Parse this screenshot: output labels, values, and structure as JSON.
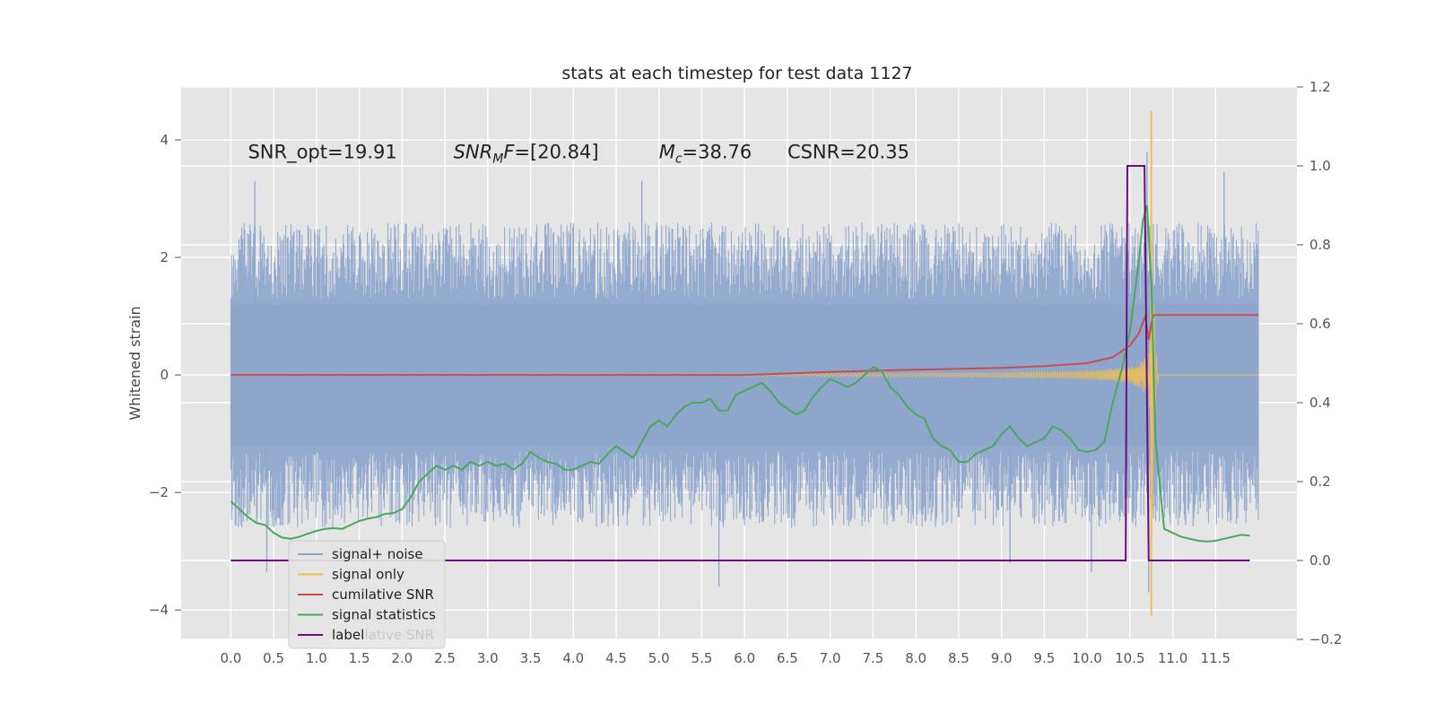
{
  "chart_data": {
    "type": "line",
    "title": "stats at each timestep for test data 1127",
    "xlabel": "",
    "ylabel": "Whitened strain",
    "xlim": [
      -0.58,
      12.45
    ],
    "ylim": [
      -4.5,
      4.9
    ],
    "y2lim": [
      -0.2,
      1.2
    ],
    "grid": true,
    "x_ticks": [
      "0.0",
      "0.5",
      "1.0",
      "1.5",
      "2.0",
      "2.5",
      "3.0",
      "3.5",
      "4.0",
      "4.5",
      "5.0",
      "5.5",
      "6.0",
      "6.5",
      "7.0",
      "7.5",
      "8.0",
      "8.5",
      "9.0",
      "9.5",
      "10.0",
      "10.5",
      "11.0",
      "11.5"
    ],
    "y_ticks": [
      "4",
      "2",
      "0",
      "−2",
      "−4"
    ],
    "y2_ticks": [
      "1.2",
      "1.0",
      "0.8",
      "0.6",
      "0.4",
      "0.2",
      "0.0",
      "−0.2"
    ],
    "annotations": [
      {
        "text": "SNR_opt=19.91",
        "x": 0.2,
        "y": 3.75
      },
      {
        "text": "SNR_MF=[20.84]",
        "x": 2.6,
        "y": 3.75,
        "math": "SNR",
        "sub": "M",
        "rest": "F=[20.84]"
      },
      {
        "text": "M_c=38.76",
        "x": 5.0,
        "y": 3.75,
        "math": "M",
        "sub": "c",
        "rest": "=38.76"
      },
      {
        "text": "CSNR=20.35",
        "x": 6.5,
        "y": 3.75
      }
    ],
    "legend": {
      "placement": "lower-left",
      "entries": [
        {
          "label": "signal+ noise",
          "color": "#8fa6cc"
        },
        {
          "label": "signal only",
          "color": "#f0c050"
        },
        {
          "label": "cumilative SNR",
          "color": "#c44e52"
        },
        {
          "label": "signal statistics",
          "color": "#4aa85c"
        },
        {
          "label": "label",
          "color": "#6a0f80"
        }
      ],
      "ghost_text": "cumilative SNR"
    },
    "series": [
      {
        "name": "signal+ noise",
        "axis": "left",
        "color": "#8fa6cc",
        "description": "whitened noisy strain, roughly ±2.5 band with spikes to ±3.5",
        "x_range": [
          0.0,
          12.0
        ],
        "envelope_high": 2.6,
        "envelope_low": -2.6,
        "spikes": [
          [
            0.28,
            3.3
          ],
          [
            0.42,
            -3.35
          ],
          [
            4.8,
            3.3
          ],
          [
            5.7,
            -3.6
          ],
          [
            10.05,
            -3.35
          ],
          [
            10.7,
            3.8
          ],
          [
            10.72,
            -3.7
          ],
          [
            11.6,
            3.45
          ],
          [
            9.1,
            -3.2
          ]
        ]
      },
      {
        "name": "signal only",
        "axis": "left",
        "color": "#f0c050",
        "description": "chirp signal growing into merger near t=10.75",
        "x_range": [
          0.0,
          12.0
        ],
        "peak": [
          10.75,
          4.5
        ],
        "trough": [
          10.75,
          -4.1
        ]
      },
      {
        "name": "cumilative SNR",
        "axis": "left",
        "x": [
          0.0,
          2.0,
          4.0,
          6.0,
          7.0,
          8.0,
          9.0,
          9.5,
          10.0,
          10.3,
          10.5,
          10.6,
          10.68,
          10.72,
          10.76,
          10.78,
          12.0
        ],
        "y": [
          0.0,
          0.0,
          0.0,
          0.0,
          0.05,
          0.09,
          0.12,
          0.15,
          0.2,
          0.3,
          0.5,
          0.7,
          1.0,
          0.6,
          0.95,
          1.02,
          1.02
        ],
        "color": "#c44e52"
      },
      {
        "name": "signal statistics",
        "axis": "right",
        "color": "#4aa85c",
        "x": [
          0.0,
          0.1,
          0.2,
          0.3,
          0.4,
          0.5,
          0.6,
          0.7,
          0.8,
          0.9,
          1.0,
          1.1,
          1.2,
          1.3,
          1.4,
          1.5,
          1.6,
          1.7,
          1.8,
          1.9,
          2.0,
          2.1,
          2.2,
          2.3,
          2.4,
          2.5,
          2.6,
          2.7,
          2.8,
          2.9,
          3.0,
          3.1,
          3.2,
          3.3,
          3.4,
          3.5,
          3.6,
          3.7,
          3.8,
          3.9,
          4.0,
          4.1,
          4.2,
          4.3,
          4.4,
          4.5,
          4.6,
          4.7,
          4.8,
          4.9,
          5.0,
          5.1,
          5.2,
          5.3,
          5.4,
          5.5,
          5.6,
          5.7,
          5.8,
          5.9,
          6.0,
          6.1,
          6.2,
          6.3,
          6.4,
          6.5,
          6.6,
          6.7,
          6.8,
          6.9,
          7.0,
          7.1,
          7.2,
          7.3,
          7.4,
          7.5,
          7.6,
          7.7,
          7.8,
          7.9,
          8.0,
          8.1,
          8.2,
          8.3,
          8.4,
          8.5,
          8.6,
          8.7,
          8.8,
          8.9,
          9.0,
          9.1,
          9.2,
          9.3,
          9.4,
          9.5,
          9.6,
          9.7,
          9.8,
          9.9,
          10.0,
          10.1,
          10.2,
          10.3,
          10.4,
          10.5,
          10.6,
          10.65,
          10.7,
          10.75,
          10.8,
          10.9,
          11.0,
          11.1,
          11.2,
          11.3,
          11.4,
          11.5,
          11.6,
          11.7,
          11.8,
          11.9
        ],
        "y": [
          0.15,
          0.13,
          0.11,
          0.095,
          0.09,
          0.07,
          0.058,
          0.055,
          0.06,
          0.068,
          0.075,
          0.08,
          0.082,
          0.08,
          0.09,
          0.1,
          0.106,
          0.11,
          0.118,
          0.12,
          0.13,
          0.16,
          0.2,
          0.22,
          0.24,
          0.23,
          0.24,
          0.23,
          0.25,
          0.24,
          0.25,
          0.24,
          0.245,
          0.23,
          0.245,
          0.275,
          0.26,
          0.25,
          0.245,
          0.23,
          0.23,
          0.24,
          0.25,
          0.245,
          0.27,
          0.29,
          0.275,
          0.26,
          0.3,
          0.34,
          0.355,
          0.34,
          0.37,
          0.39,
          0.4,
          0.4,
          0.41,
          0.38,
          0.38,
          0.42,
          0.43,
          0.44,
          0.45,
          0.43,
          0.4,
          0.385,
          0.37,
          0.38,
          0.415,
          0.44,
          0.46,
          0.45,
          0.44,
          0.45,
          0.47,
          0.49,
          0.48,
          0.44,
          0.42,
          0.39,
          0.37,
          0.36,
          0.31,
          0.29,
          0.28,
          0.25,
          0.25,
          0.27,
          0.28,
          0.29,
          0.32,
          0.34,
          0.31,
          0.29,
          0.3,
          0.31,
          0.34,
          0.33,
          0.31,
          0.28,
          0.275,
          0.28,
          0.3,
          0.4,
          0.48,
          0.58,
          0.75,
          0.86,
          0.9,
          0.7,
          0.3,
          0.08,
          0.07,
          0.06,
          0.055,
          0.05,
          0.048,
          0.05,
          0.055,
          0.06,
          0.065,
          0.063
        ]
      },
      {
        "name": "label",
        "axis": "right",
        "color": "#6a0f80",
        "x": [
          0.0,
          10.44,
          10.45,
          10.47,
          10.65,
          10.67,
          10.72,
          10.73,
          11.9
        ],
        "y": [
          0.0,
          0.0,
          0.0,
          1.0,
          1.0,
          1.0,
          0.0,
          0.0,
          0.0
        ]
      }
    ]
  }
}
